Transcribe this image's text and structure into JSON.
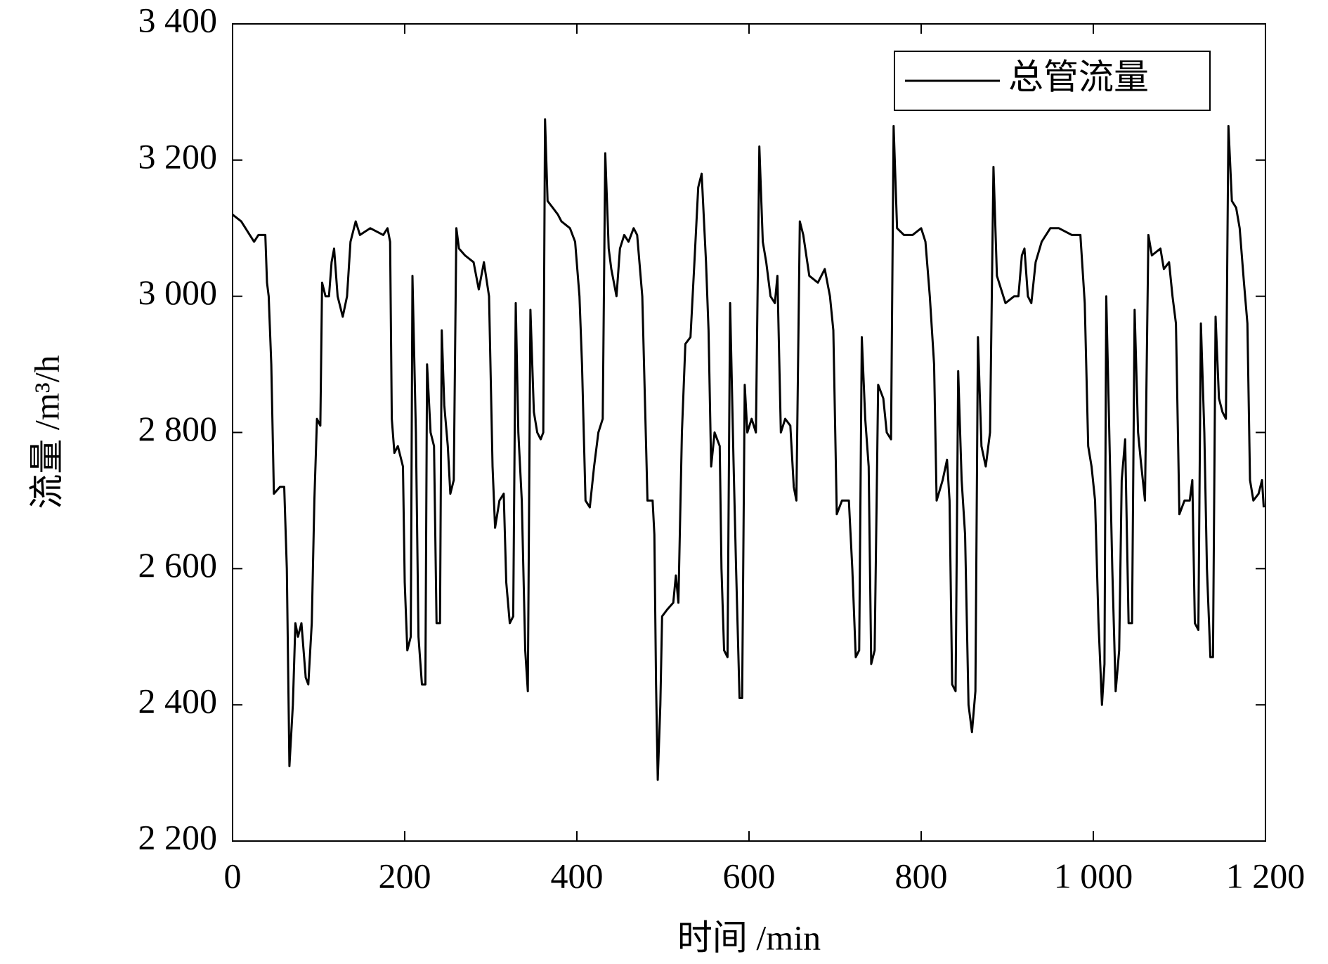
{
  "chart_data": {
    "type": "line",
    "xlabel": "时间 /min",
    "ylabel": "流量 /m³/h",
    "xlim": [
      0,
      1200
    ],
    "ylim": [
      2200,
      3400
    ],
    "xticks": [
      0,
      200,
      400,
      600,
      800,
      {
        "value": 1000,
        "label": "1 000"
      },
      {
        "value": 1200,
        "label": "1 200"
      }
    ],
    "yticks": [
      {
        "value": 2200,
        "label": "2 200"
      },
      {
        "value": 2400,
        "label": "2 400"
      },
      {
        "value": 2600,
        "label": "2 600"
      },
      {
        "value": 2800,
        "label": "2 800"
      },
      {
        "value": 3000,
        "label": "3 000"
      },
      {
        "value": 3200,
        "label": "3 200"
      },
      {
        "value": 3400,
        "label": "3 400"
      }
    ],
    "legend": "upper right",
    "series": [
      {
        "name": "总管流量",
        "color": "#000000",
        "x": [
          0,
          10,
          20,
          25,
          30,
          38,
          40,
          42,
          45,
          48,
          55,
          60,
          63,
          66,
          70,
          73,
          76,
          80,
          85,
          88,
          92,
          95,
          98,
          102,
          104,
          108,
          112,
          115,
          118,
          122,
          128,
          133,
          137,
          143,
          148,
          160,
          175,
          180,
          183,
          185,
          188,
          192,
          198,
          200,
          203,
          207,
          209,
          213,
          216,
          220,
          224,
          226,
          230,
          234,
          237,
          241,
          243,
          246,
          250,
          253,
          257,
          260,
          263,
          270,
          280,
          286,
          292,
          298,
          302,
          305,
          310,
          315,
          318,
          322,
          326,
          329,
          332,
          336,
          340,
          343,
          346,
          350,
          354,
          358,
          361,
          363,
          366,
          372,
          378,
          382,
          392,
          398,
          403,
          406,
          410,
          415,
          420,
          425,
          430,
          433,
          437,
          440,
          446,
          450,
          455,
          460,
          466,
          470,
          476,
          482,
          488,
          490,
          492,
          494,
          497,
          499,
          505,
          512,
          515,
          518,
          522,
          526,
          532,
          537,
          541,
          545,
          550,
          553,
          556,
          560,
          566,
          568,
          571,
          575,
          578,
          582,
          585,
          589,
          592,
          595,
          598,
          603,
          608,
          612,
          616,
          620,
          625,
          630,
          633,
          637,
          642,
          648,
          652,
          655,
          659,
          663,
          670,
          680,
          688,
          694,
          698,
          702,
          708,
          716,
          720,
          724,
          728,
          731,
          735,
          739,
          742,
          746,
          750,
          756,
          760,
          765,
          768,
          772,
          780,
          790,
          800,
          805,
          810,
          815,
          818,
          825,
          830,
          833,
          836,
          840,
          843,
          847,
          851,
          855,
          859,
          863,
          866,
          870,
          875,
          880,
          884,
          888,
          893,
          898,
          908,
          913,
          917,
          920,
          924,
          928,
          933,
          940,
          950,
          960,
          975,
          985,
          990,
          994,
          998,
          1002,
          1006,
          1010,
          1013,
          1015,
          1018,
          1022,
          1026,
          1030,
          1033,
          1037,
          1041,
          1045,
          1048,
          1052,
          1055,
          1060,
          1064,
          1068,
          1078,
          1082,
          1088,
          1092,
          1096,
          1100,
          1106,
          1112,
          1115,
          1118,
          1122,
          1125,
          1129,
          1132,
          1136,
          1139,
          1142,
          1146,
          1150,
          1154,
          1157,
          1161,
          1166,
          1170,
          1175,
          1179,
          1182,
          1186,
          1192,
          1196,
          1198
        ],
        "values": [
          3120,
          3110,
          3090,
          3080,
          3090,
          3090,
          3020,
          3000,
          2900,
          2710,
          2720,
          2720,
          2600,
          2310,
          2400,
          2520,
          2500,
          2520,
          2440,
          2430,
          2520,
          2700,
          2820,
          2810,
          3020,
          3000,
          3000,
          3050,
          3070,
          3000,
          2970,
          3000,
          3080,
          3110,
          3090,
          3100,
          3090,
          3100,
          3080,
          2820,
          2770,
          2780,
          2750,
          2580,
          2480,
          2500,
          3030,
          2800,
          2500,
          2430,
          2430,
          2900,
          2800,
          2780,
          2520,
          2520,
          2950,
          2840,
          2780,
          2710,
          2730,
          3100,
          3070,
          3060,
          3050,
          3010,
          3050,
          3000,
          2750,
          2660,
          2700,
          2710,
          2580,
          2520,
          2530,
          2990,
          2800,
          2700,
          2480,
          2420,
          2980,
          2830,
          2800,
          2790,
          2800,
          3260,
          3140,
          3130,
          3120,
          3110,
          3100,
          3080,
          3000,
          2900,
          2700,
          2690,
          2750,
          2800,
          2820,
          3210,
          3070,
          3040,
          3000,
          3070,
          3090,
          3080,
          3100,
          3090,
          3000,
          2700,
          2700,
          2650,
          2430,
          2290,
          2400,
          2530,
          2540,
          2550,
          2590,
          2550,
          2800,
          2930,
          2940,
          3060,
          3160,
          3180,
          3050,
          2950,
          2750,
          2800,
          2780,
          2600,
          2480,
          2470,
          2990,
          2760,
          2600,
          2410,
          2410,
          2870,
          2800,
          2820,
          2800,
          3220,
          3080,
          3050,
          3000,
          2990,
          3030,
          2800,
          2820,
          2810,
          2720,
          2700,
          3110,
          3090,
          3030,
          3020,
          3040,
          3000,
          2950,
          2680,
          2700,
          2700,
          2600,
          2470,
          2480,
          2940,
          2820,
          2750,
          2460,
          2480,
          2870,
          2850,
          2800,
          2790,
          3250,
          3100,
          3090,
          3090,
          3100,
          3080,
          3000,
          2900,
          2700,
          2730,
          2760,
          2700,
          2430,
          2420,
          2890,
          2730,
          2650,
          2400,
          2360,
          2420,
          2940,
          2780,
          2750,
          2800,
          3190,
          3030,
          3010,
          2990,
          3000,
          3000,
          3060,
          3070,
          3000,
          2990,
          3050,
          3080,
          3100,
          3100,
          3090,
          3090,
          2990,
          2780,
          2750,
          2700,
          2520,
          2400,
          2460,
          3000,
          2830,
          2600,
          2420,
          2480,
          2730,
          2790,
          2520,
          2520,
          2980,
          2800,
          2760,
          2700,
          3090,
          3060,
          3070,
          3040,
          3050,
          3000,
          2960,
          2680,
          2700,
          2700,
          2730,
          2520,
          2510,
          2960,
          2800,
          2600,
          2470,
          2470,
          2970,
          2850,
          2830,
          2820,
          3250,
          3140,
          3130,
          3100,
          3020,
          2960,
          2730,
          2700,
          2710,
          2730,
          2690
        ]
      }
    ]
  }
}
